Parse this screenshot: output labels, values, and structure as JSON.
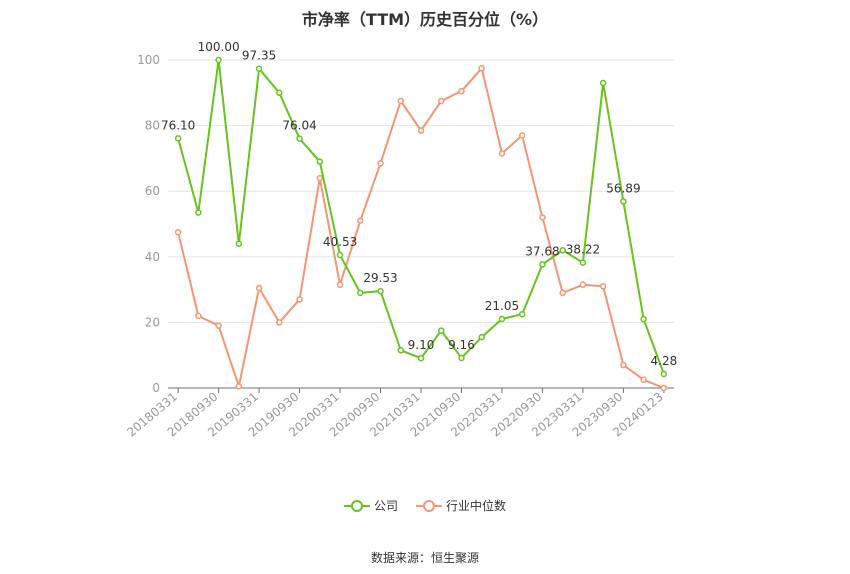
{
  "title": "市净率（TTM）历史百分位（%）",
  "source": "数据来源：恒生聚源",
  "colors": {
    "company": "#66c41d",
    "industry": "#f59572",
    "grid": "#e6e6e6",
    "axis": "#999999"
  },
  "chart_data": {
    "type": "line",
    "title": "市净率（TTM）历史百分位（%）",
    "ylim": [
      0,
      100
    ],
    "yticks": [
      0,
      20,
      40,
      60,
      80,
      100
    ],
    "grid": true,
    "legend_position": "bottom",
    "x_tick_labels": [
      "20180331",
      "20180930",
      "20190331",
      "20190930",
      "20200331",
      "20200930",
      "20210331",
      "20210930",
      "20220331",
      "20220930",
      "20230331",
      "20230930",
      "20240123"
    ],
    "x_tick_indices": [
      0,
      2,
      4,
      6,
      8,
      10,
      12,
      14,
      16,
      18,
      20,
      22,
      24
    ],
    "x": [
      "20180331",
      "20180630",
      "20180930",
      "20181231",
      "20190331",
      "20190630",
      "20190930",
      "20191231",
      "20200331",
      "20200630",
      "20200930",
      "20201231",
      "20210331",
      "20210630",
      "20210930",
      "20211231",
      "20220331",
      "20220630",
      "20220930",
      "20221231",
      "20230331",
      "20230630",
      "20230930",
      "20231231",
      "20240123"
    ],
    "series": [
      {
        "name": "公司",
        "values": [
          76.1,
          53.5,
          100.0,
          44.0,
          97.35,
          90.0,
          76.04,
          69.0,
          40.53,
          29.0,
          29.53,
          11.5,
          9.1,
          17.5,
          9.16,
          15.5,
          21.05,
          22.5,
          37.68,
          42.0,
          38.22,
          93.0,
          56.89,
          21.0,
          4.28
        ],
        "labels": {
          "0": "76.10",
          "2": "100.00",
          "4": "97.35",
          "6": "76.04",
          "8": "40.53",
          "10": "29.53",
          "12": "9.10",
          "14": "9.16",
          "16": "21.05",
          "18": "37.68",
          "20": "38.22",
          "22": "56.89",
          "24": "4.28"
        }
      },
      {
        "name": "行业中位数",
        "values": [
          47.5,
          22.0,
          19.0,
          0.5,
          30.5,
          20.0,
          27.0,
          64.0,
          31.5,
          51.0,
          68.5,
          87.5,
          78.5,
          87.5,
          90.5,
          97.5,
          71.5,
          77.0,
          52.0,
          29.0,
          31.5,
          31.0,
          7.0,
          2.5,
          0.0
        ]
      }
    ]
  }
}
